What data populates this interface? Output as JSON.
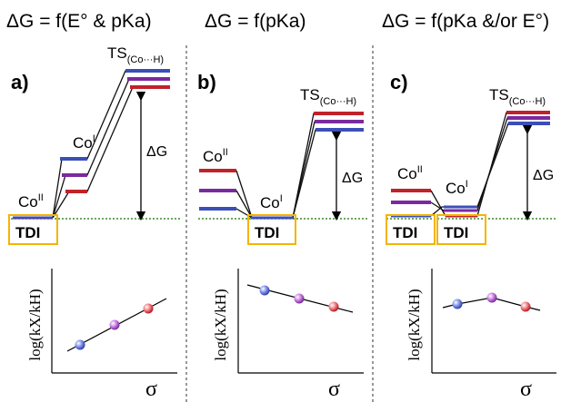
{
  "panels": [
    {
      "header": "ΔG = f(E° & pKa)",
      "letter": "a)",
      "co2": "Co",
      "co2_sup": "II",
      "co1": "Co",
      "co1_sup": "I",
      "ts": "TS",
      "ts_sub": "(Co···H)",
      "dg": "ΔG",
      "tdi": [
        "TDI"
      ],
      "ylabel": "log(kX/kH)",
      "xlabel": "σ"
    },
    {
      "header": "ΔG = f(pKa)",
      "letter": "b)",
      "co2": "Co",
      "co2_sup": "II",
      "co1": "Co",
      "co1_sup": "I",
      "ts": "TS",
      "ts_sub": "(Co···H)",
      "dg": "ΔG",
      "tdi": [
        "TDI"
      ],
      "ylabel": "log(kX/kH)",
      "xlabel": "σ"
    },
    {
      "header": "ΔG = f(pKa &/or E°)",
      "letter": "c)",
      "co2": "Co",
      "co2_sup": "II",
      "co1": "Co",
      "co1_sup": "I",
      "ts": "TS",
      "ts_sub": "(Co···H)",
      "dg": "ΔG",
      "tdi": [
        "TDI",
        "TDI"
      ],
      "ylabel": "log(kX/kH)",
      "xlabel": "σ"
    }
  ],
  "colors": {
    "blue": "#3b4fb8",
    "purple": "#7a2a9e",
    "red": "#c0222a",
    "tdi_box": "#f4b400",
    "baseline": "#3a8a2a",
    "divider": "#555555"
  }
}
